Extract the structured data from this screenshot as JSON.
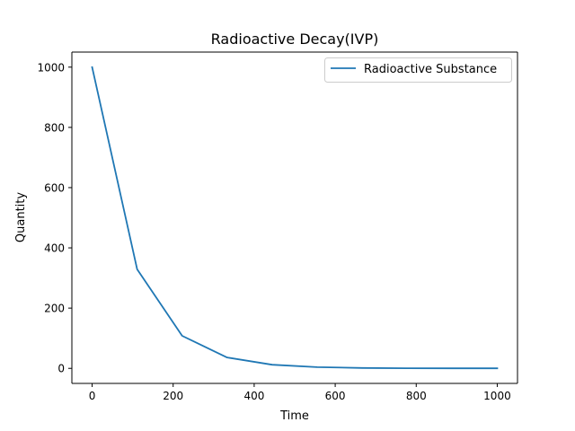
{
  "chart_data": {
    "type": "line",
    "title": "Radioactive Decay(IVP)",
    "xlabel": "Time",
    "ylabel": "Quantity",
    "xlim": [
      -50,
      1050
    ],
    "ylim": [
      -50,
      1050
    ],
    "xticks": [
      0,
      200,
      400,
      600,
      800,
      1000
    ],
    "yticks": [
      0,
      200,
      400,
      600,
      800,
      1000
    ],
    "grid": false,
    "legend_position": "top-right",
    "series": [
      {
        "name": "Radioactive Substance",
        "color": "#1f77b4",
        "x": [
          0,
          111.1,
          222.2,
          333.3,
          444.4,
          555.6,
          666.7,
          777.8,
          888.9,
          1000
        ],
        "y": [
          1000,
          329,
          108,
          36,
          12,
          4,
          1.3,
          0.4,
          0.1,
          0.05
        ]
      }
    ]
  }
}
